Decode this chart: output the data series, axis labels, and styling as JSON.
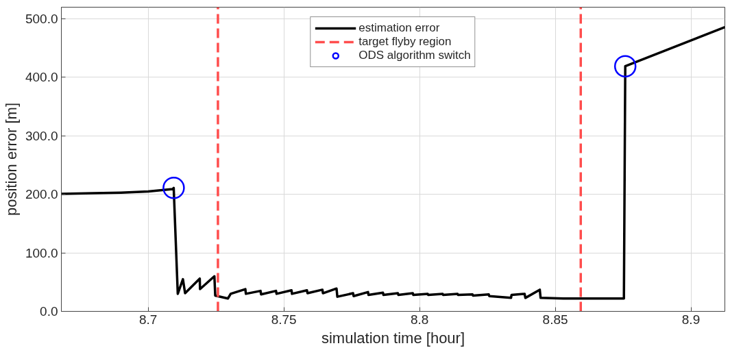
{
  "chart_data": {
    "type": "line",
    "xlabel": "simulation time [hour]",
    "ylabel": "position error [m]",
    "xlim": [
      8.668,
      8.9125
    ],
    "ylim": [
      0,
      520
    ],
    "xticks": [
      8.7,
      8.75,
      8.8,
      8.85,
      8.9
    ],
    "yticks": [
      {
        "value": 0,
        "label": "0.0"
      },
      {
        "value": 100,
        "label": "100.0"
      },
      {
        "value": 200,
        "label": "200.0"
      },
      {
        "value": 300,
        "label": "300.0"
      },
      {
        "value": 400,
        "label": "400.0"
      },
      {
        "value": 500,
        "label": "500.0"
      }
    ],
    "grid": true,
    "legend": "top",
    "series": [
      {
        "name": "estimation error",
        "color": "#000000",
        "marker": "none",
        "line_style": "solid",
        "x": [
          8.668,
          8.68,
          8.69,
          8.7,
          8.709,
          8.7094,
          8.7109,
          8.7128,
          8.7136,
          8.719,
          8.7191,
          8.7244,
          8.7247,
          8.7294,
          8.7304,
          8.7358,
          8.736,
          8.7414,
          8.7416,
          8.7471,
          8.7473,
          8.7528,
          8.753,
          8.7585,
          8.7587,
          8.7642,
          8.7644,
          8.7694,
          8.7697,
          8.7755,
          8.7757,
          8.781,
          8.7812,
          8.7865,
          8.7867,
          8.792,
          8.7922,
          8.7975,
          8.7977,
          8.803,
          8.8032,
          8.8085,
          8.8087,
          8.814,
          8.8142,
          8.8195,
          8.8197,
          8.8255,
          8.8257,
          8.8337,
          8.8339,
          8.8387,
          8.839,
          8.8443,
          8.8446,
          8.853,
          8.8753,
          8.8758,
          8.9125
        ],
        "values": [
          201,
          202,
          203,
          205,
          209,
          211,
          30,
          55,
          31,
          56,
          38,
          60,
          27,
          22,
          30,
          38,
          30,
          35,
          29,
          35,
          30,
          36,
          30,
          36,
          31,
          37,
          31,
          39,
          25,
          31,
          26,
          33,
          28,
          32,
          28,
          31,
          28,
          31,
          28,
          30,
          28,
          30,
          28,
          30,
          28,
          29,
          27,
          29,
          26,
          23,
          28,
          30,
          23,
          37,
          23,
          22,
          22,
          419,
          486
        ]
      },
      {
        "name": "target flyby region",
        "color": "#ff4d4d",
        "marker": "none",
        "line_style": "dashed",
        "x": [
          8.7257,
          8.7257
        ],
        "values": [
          0,
          520
        ]
      },
      {
        "color": "#ff4d4d",
        "marker": "none",
        "line_style": "dashed",
        "x": [
          8.8594,
          8.8594
        ],
        "values": [
          0,
          520
        ]
      },
      {
        "name": "ODS algorithm switch",
        "type": "scatter",
        "color": "#0000ff",
        "marker": "circle",
        "x": [
          8.7094,
          8.8758
        ],
        "values": [
          211,
          419
        ]
      }
    ]
  }
}
